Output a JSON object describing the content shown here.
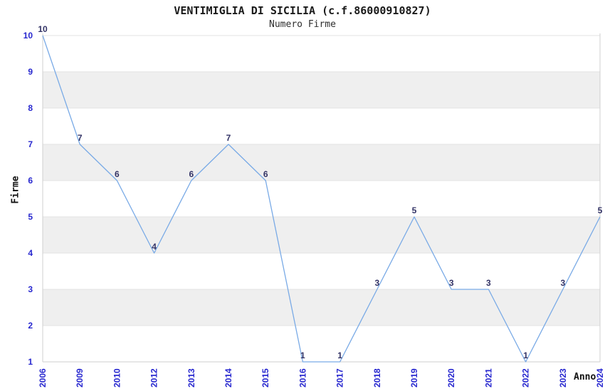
{
  "chart_data": {
    "type": "line",
    "title": "VENTIMIGLIA DI SICILIA (c.f.86000910827)",
    "subtitle": "Numero Firme",
    "xlabel": "Anno",
    "ylabel": "Firme",
    "categories": [
      "2006",
      "2009",
      "2010",
      "2012",
      "2013",
      "2014",
      "2015",
      "2016",
      "2017",
      "2018",
      "2019",
      "2020",
      "2021",
      "2022",
      "2023",
      "2024"
    ],
    "values": [
      10,
      7,
      6,
      4,
      6,
      7,
      6,
      1,
      1,
      3,
      5,
      3,
      3,
      1,
      3,
      5
    ],
    "ylim": [
      1,
      10
    ],
    "yticks": [
      1,
      2,
      3,
      4,
      5,
      6,
      7,
      8,
      9,
      10
    ],
    "grid": "horizontal-only",
    "legend": "none",
    "data_labels_shown": true,
    "colors": {
      "line": "#79aae6",
      "tick_label": "#2727cf",
      "data_label": "#333366",
      "band": "#efefef",
      "gridline": "#e3e3e3",
      "axis": "#cfcfcf",
      "title": "#1a1a1a",
      "background": "#ffffff"
    }
  }
}
